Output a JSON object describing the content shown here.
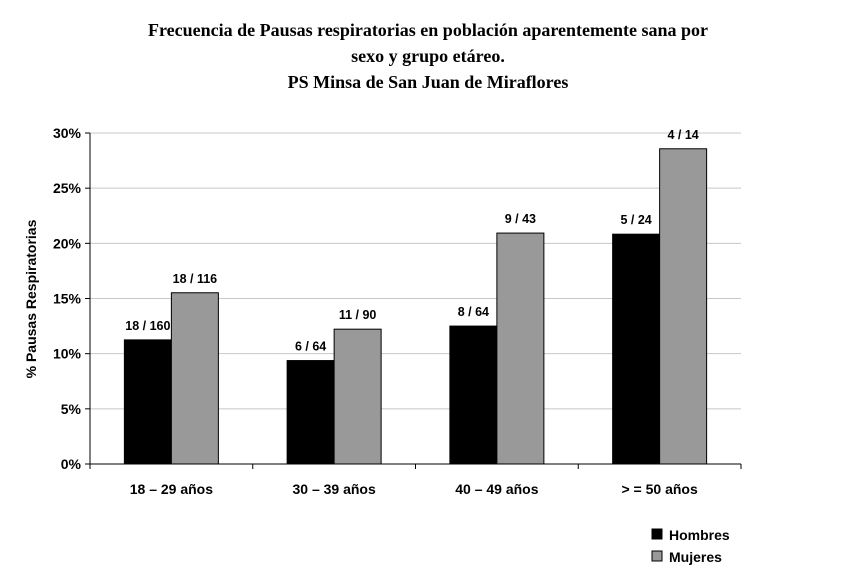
{
  "chart_data": {
    "type": "bar",
    "title": [
      "Frecuencia de Pausas respiratorias en población aparentemente sana por",
      "sexo y grupo etáreo.",
      "PS Minsa de San Juan de Miraflores"
    ],
    "ylabel": "% Pausas Respiratorias",
    "xlabel": "",
    "ylim": [
      0,
      30
    ],
    "yticks": [
      "0%",
      "5%",
      "10%",
      "15%",
      "20%",
      "25%",
      "30%"
    ],
    "grid": true,
    "legend_position": "bottom-right",
    "categories": [
      "18 – 29 años",
      "30 – 39 años",
      "40 – 49 años",
      "> = 50 años"
    ],
    "series": [
      {
        "name": "Hombres",
        "color": "#000000",
        "values": [
          11.25,
          9.375,
          12.5,
          20.83
        ],
        "labels": [
          "18 / 160",
          "6 / 64",
          "8 / 64",
          "5 / 24"
        ]
      },
      {
        "name": "Mujeres",
        "color": "#999999",
        "values": [
          15.52,
          12.22,
          20.93,
          28.57
        ],
        "labels": [
          "18 / 116",
          "11 / 90",
          "9 / 43",
          "4 / 14"
        ]
      }
    ]
  }
}
